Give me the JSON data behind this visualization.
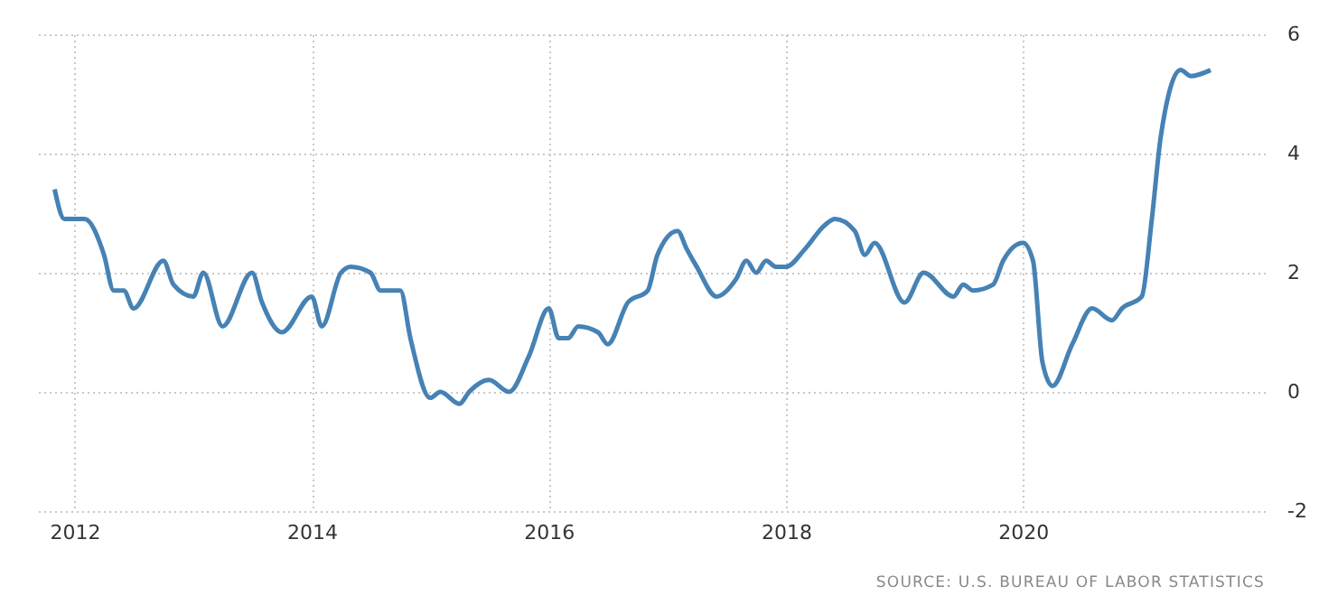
{
  "chart_data": {
    "type": "line",
    "x": [
      "2011-11",
      "2011-12",
      "2012-02",
      "2012-04",
      "2012-05",
      "2012-06",
      "2012-07",
      "2012-10",
      "2012-11",
      "2013-01",
      "2013-02",
      "2013-04",
      "2013-07",
      "2013-08",
      "2013-10",
      "2014-01",
      "2014-02",
      "2014-04",
      "2014-05",
      "2014-07",
      "2014-08",
      "2014-10",
      "2014-11",
      "2015-01",
      "2015-02",
      "2015-04",
      "2015-05",
      "2015-07",
      "2015-09",
      "2015-11",
      "2016-01",
      "2016-02",
      "2016-03",
      "2016-04",
      "2016-06",
      "2016-07",
      "2016-09",
      "2016-11",
      "2016-12",
      "2017-02",
      "2017-03",
      "2017-04",
      "2017-06",
      "2017-08",
      "2017-09",
      "2017-10",
      "2017-11",
      "2017-12",
      "2018-01",
      "2018-03",
      "2018-05",
      "2018-06",
      "2018-08",
      "2018-09",
      "2018-10",
      "2019-01",
      "2019-03",
      "2019-06",
      "2019-07",
      "2019-08",
      "2019-10",
      "2019-11",
      "2020-01",
      "2020-02",
      "2020-03",
      "2020-04",
      "2020-06",
      "2020-08",
      "2020-10",
      "2020-11",
      "2021-01",
      "2021-02",
      "2021-03",
      "2021-05",
      "2021-06",
      "2021-08"
    ],
    "series": [
      {
        "color": "#4682b4",
        "values": [
          3.4,
          2.9,
          2.9,
          2.3,
          1.7,
          1.7,
          1.4,
          2.2,
          1.8,
          1.6,
          2.0,
          1.1,
          2.0,
          1.5,
          1.0,
          1.6,
          1.1,
          2.0,
          2.1,
          2.0,
          1.7,
          1.7,
          0.9,
          -0.1,
          0.0,
          -0.2,
          0.0,
          0.2,
          0.0,
          0.6,
          1.4,
          0.9,
          0.9,
          1.1,
          1.0,
          0.8,
          1.5,
          1.7,
          2.3,
          2.7,
          2.4,
          2.1,
          1.6,
          1.9,
          2.2,
          2.0,
          2.2,
          2.1,
          2.1,
          2.4,
          2.8,
          2.9,
          2.7,
          2.3,
          2.5,
          1.5,
          2.0,
          1.6,
          1.8,
          1.7,
          1.8,
          2.2,
          2.5,
          2.2,
          0.5,
          0.1,
          0.8,
          1.4,
          1.2,
          1.4,
          1.6,
          2.9,
          4.3,
          5.4,
          5.3,
          5.4
        ]
      }
    ],
    "xlim": [
      "2011-09-05",
      "2022-01-15"
    ],
    "xticks": [
      "2012",
      "2014",
      "2016",
      "2018",
      "2020"
    ],
    "ylim": [
      -2,
      6
    ],
    "yticks": [
      -2,
      0,
      2,
      4,
      6
    ],
    "grid": true,
    "annotations": [
      "SOURCE: U.S. BUREAU OF LABOR STATISTICS"
    ]
  }
}
